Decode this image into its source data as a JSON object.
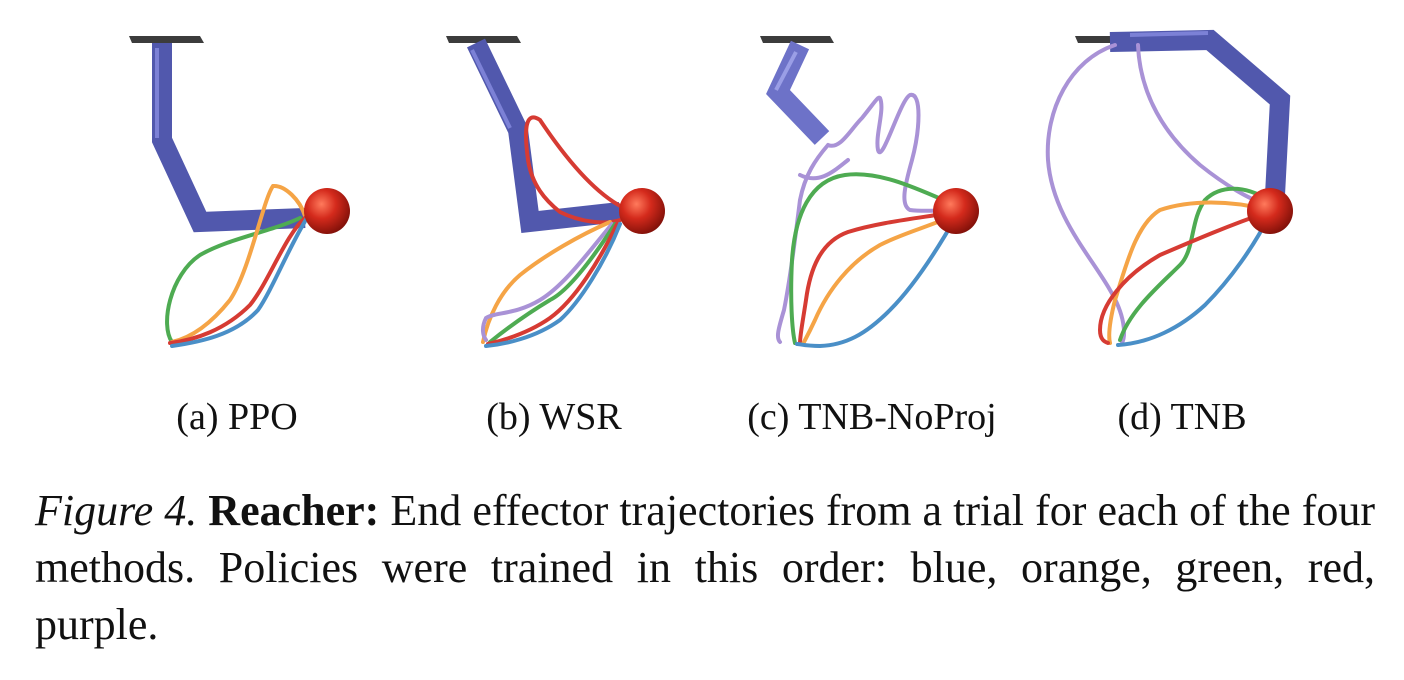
{
  "figure": {
    "panels": [
      {
        "id": "a",
        "label": "(a) PPO"
      },
      {
        "id": "b",
        "label": "(b) WSR"
      },
      {
        "id": "c",
        "label": "(c) TNB-NoProj"
      },
      {
        "id": "d",
        "label": "(d) TNB"
      }
    ],
    "colors": {
      "blue": "#4a8fc7",
      "orange": "#f5a446",
      "green": "#4eab52",
      "red": "#d63b33",
      "purple": "#a992d6",
      "arm_dark": "#4e56a8",
      "arm_light": "#7479d0",
      "base": "#3c3c3c",
      "target": "#d42a1c"
    },
    "caption": {
      "figure_label": "Figure 4.",
      "keyword": "Reacher:",
      "text": "End effector trajectories from a trial for each of the four methods. Policies were trained in this order: blue, orange, green, red, purple."
    }
  }
}
